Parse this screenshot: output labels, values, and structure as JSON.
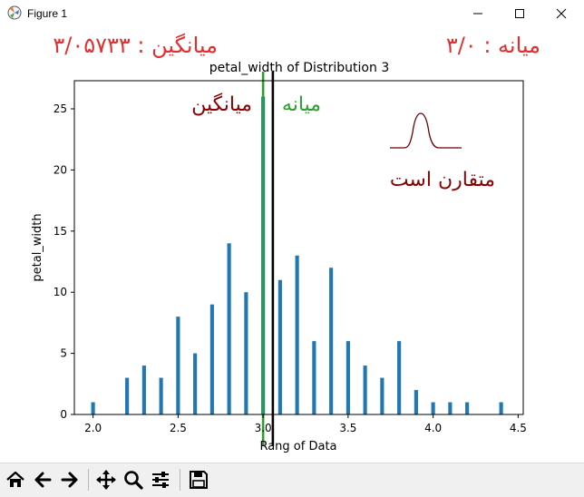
{
  "window": {
    "title": "Figure 1",
    "icon": "matplotlib-icon",
    "controls": [
      "minimize-icon",
      "maximize-icon",
      "close-icon"
    ]
  },
  "annotations": {
    "mean_value": "میانگین : ۳/۰۵۷۳۳",
    "median_value": "میانه : ۳/۰",
    "mean_line_label": "میانگین",
    "median_line_label": "میانه",
    "symmetric_label": "متقارن است"
  },
  "colors": {
    "bars": "#1f77b4",
    "mean_line": "#000000",
    "median_line": "#2ca02c",
    "mean_text": "#8b0000",
    "median_text": "#2ca02c",
    "header_text": "#e03030",
    "bell_curve": "#6b0000"
  },
  "chart_data": {
    "type": "bar",
    "title": "petal_width of Distribution 3",
    "xlabel": "Rang of Data",
    "ylabel": "petal_width",
    "xlim": [
      1.89,
      4.53
    ],
    "ylim": [
      0,
      27.3
    ],
    "xticks": [
      "2.0",
      "2.5",
      "3.0",
      "3.5",
      "4.0",
      "4.5"
    ],
    "yticks": [
      "0",
      "5",
      "10",
      "15",
      "20",
      "25"
    ],
    "bar_width": 0.022,
    "x": [
      2.0,
      2.2,
      2.3,
      2.4,
      2.5,
      2.6,
      2.7,
      2.8,
      2.9,
      3.0,
      3.1,
      3.2,
      3.3,
      3.4,
      3.5,
      3.6,
      3.7,
      3.8,
      3.9,
      4.0,
      4.1,
      4.2,
      4.4
    ],
    "values": [
      1,
      3,
      4,
      3,
      8,
      5,
      9,
      14,
      10,
      26,
      11,
      13,
      6,
      12,
      6,
      4,
      3,
      6,
      2,
      1,
      1,
      1,
      1
    ],
    "mean": 3.05733,
    "median": 3.0,
    "grid": false
  },
  "toolbar": {
    "buttons": [
      "home-icon",
      "back-icon",
      "forward-icon",
      "pan-icon",
      "zoom-icon",
      "configure-icon",
      "save-icon"
    ]
  }
}
